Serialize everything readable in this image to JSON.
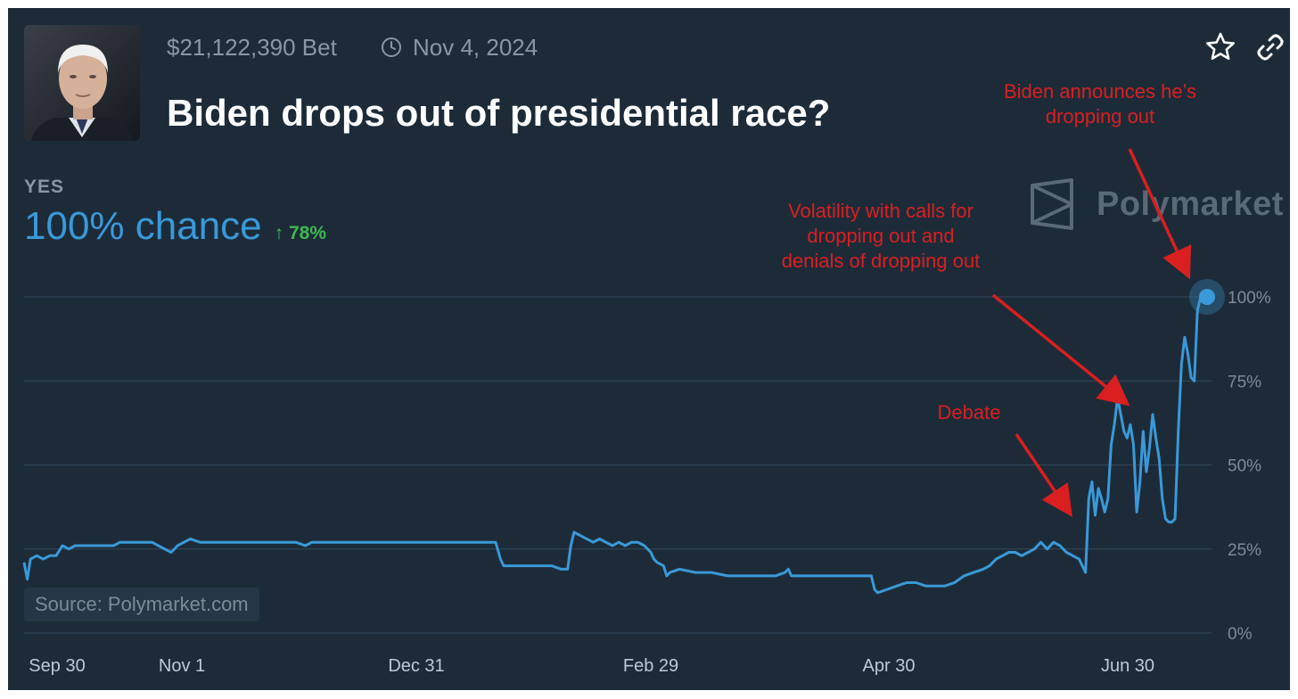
{
  "market": {
    "bet_volume": "$21,122,390 Bet",
    "end_date": "Nov 4, 2024",
    "title": "Biden drops out of presidential race?",
    "outcome_label": "YES",
    "chance": "100% chance",
    "change": "78%",
    "source": "Source: Polymarket.com",
    "watermark": "Polymarket"
  },
  "icons": {
    "star": "star-icon",
    "link": "link-icon",
    "clock": "clock-icon",
    "trend": "arrow-up-icon",
    "brand": "polymarket-logo"
  },
  "colors": {
    "background": "#1d2b39",
    "line": "#3a99d8",
    "positive": "#3fb950",
    "annotation": "#d91f1f"
  },
  "annotations": [
    {
      "id": "dropout",
      "lines": [
        "Biden announces he’s",
        "dropping out"
      ]
    },
    {
      "id": "volatility",
      "lines": [
        "Volatility with calls for",
        "dropping out and",
        "denials of dropping out"
      ]
    },
    {
      "id": "debate",
      "lines": [
        "Debate"
      ]
    }
  ],
  "chart_data": {
    "type": "line",
    "title": "",
    "xlabel": "",
    "ylabel": "",
    "ylim": [
      0,
      100
    ],
    "x_ticks": [
      "Sep 30",
      "Nov 1",
      "Dec 31",
      "Feb 29",
      "Apr 30",
      "Jun 30"
    ],
    "y_ticks": [
      "0%",
      "25%",
      "50%",
      "75%",
      "100%"
    ],
    "grid": true,
    "series": [
      {
        "values": [
          [
            0,
            21
          ],
          [
            2,
            16
          ],
          [
            4,
            22
          ],
          [
            8,
            23
          ],
          [
            12,
            22
          ],
          [
            16,
            23
          ],
          [
            20,
            23
          ],
          [
            24,
            26
          ],
          [
            28,
            25
          ],
          [
            32,
            26
          ],
          [
            40,
            26
          ],
          [
            48,
            26
          ],
          [
            56,
            26
          ],
          [
            60,
            27
          ],
          [
            70,
            27
          ],
          [
            80,
            27
          ],
          [
            88,
            25
          ],
          [
            92,
            24
          ],
          [
            96,
            26
          ],
          [
            100,
            27
          ],
          [
            104,
            28
          ],
          [
            110,
            27
          ],
          [
            120,
            27
          ],
          [
            130,
            27
          ],
          [
            140,
            27
          ],
          [
            150,
            27
          ],
          [
            160,
            27
          ],
          [
            170,
            27
          ],
          [
            176,
            26
          ],
          [
            180,
            27
          ],
          [
            190,
            27
          ],
          [
            200,
            27
          ],
          [
            210,
            27
          ],
          [
            220,
            27
          ],
          [
            230,
            27
          ],
          [
            240,
            27
          ],
          [
            250,
            27
          ],
          [
            260,
            27
          ],
          [
            270,
            27
          ],
          [
            280,
            27
          ],
          [
            290,
            27
          ],
          [
            295,
            27
          ],
          [
            298,
            22
          ],
          [
            300,
            20
          ],
          [
            310,
            20
          ],
          [
            320,
            20
          ],
          [
            330,
            20
          ],
          [
            336,
            19
          ],
          [
            340,
            19
          ],
          [
            342,
            26
          ],
          [
            344,
            30
          ],
          [
            348,
            29
          ],
          [
            352,
            28
          ],
          [
            356,
            27
          ],
          [
            360,
            28
          ],
          [
            364,
            27
          ],
          [
            368,
            26
          ],
          [
            372,
            27
          ],
          [
            376,
            26
          ],
          [
            380,
            27
          ],
          [
            384,
            27
          ],
          [
            388,
            26
          ],
          [
            392,
            24
          ],
          [
            394,
            22
          ],
          [
            396,
            21
          ],
          [
            400,
            20
          ],
          [
            402,
            17
          ],
          [
            404,
            18
          ],
          [
            410,
            19
          ],
          [
            420,
            18
          ],
          [
            430,
            18
          ],
          [
            440,
            17
          ],
          [
            450,
            17
          ],
          [
            460,
            17
          ],
          [
            470,
            17
          ],
          [
            476,
            18
          ],
          [
            478,
            19
          ],
          [
            480,
            17
          ],
          [
            490,
            17
          ],
          [
            500,
            17
          ],
          [
            510,
            17
          ],
          [
            520,
            17
          ],
          [
            530,
            17
          ],
          [
            532,
            13
          ],
          [
            534,
            12
          ],
          [
            540,
            13
          ],
          [
            546,
            14
          ],
          [
            552,
            15
          ],
          [
            558,
            15
          ],
          [
            564,
            14
          ],
          [
            570,
            14
          ],
          [
            576,
            14
          ],
          [
            582,
            15
          ],
          [
            588,
            17
          ],
          [
            594,
            18
          ],
          [
            600,
            19
          ],
          [
            604,
            20
          ],
          [
            608,
            22
          ],
          [
            612,
            23
          ],
          [
            616,
            24
          ],
          [
            620,
            24
          ],
          [
            624,
            23
          ],
          [
            628,
            24
          ],
          [
            632,
            25
          ],
          [
            636,
            27
          ],
          [
            640,
            25
          ],
          [
            644,
            27
          ],
          [
            648,
            26
          ],
          [
            652,
            24
          ],
          [
            656,
            23
          ],
          [
            660,
            22
          ],
          [
            662,
            20
          ],
          [
            664,
            18
          ],
          [
            666,
            40
          ],
          [
            668,
            45
          ],
          [
            670,
            35
          ],
          [
            672,
            43
          ],
          [
            674,
            40
          ],
          [
            676,
            36
          ],
          [
            678,
            40
          ],
          [
            680,
            56
          ],
          [
            682,
            62
          ],
          [
            684,
            70
          ],
          [
            686,
            65
          ],
          [
            688,
            60
          ],
          [
            690,
            58
          ],
          [
            692,
            62
          ],
          [
            694,
            56
          ],
          [
            696,
            36
          ],
          [
            698,
            45
          ],
          [
            700,
            60
          ],
          [
            702,
            48
          ],
          [
            704,
            55
          ],
          [
            706,
            65
          ],
          [
            708,
            58
          ],
          [
            710,
            52
          ],
          [
            712,
            40
          ],
          [
            714,
            34
          ],
          [
            716,
            33
          ],
          [
            718,
            33
          ],
          [
            720,
            34
          ],
          [
            722,
            60
          ],
          [
            724,
            80
          ],
          [
            726,
            88
          ],
          [
            728,
            83
          ],
          [
            730,
            76
          ],
          [
            732,
            75
          ],
          [
            734,
            96
          ],
          [
            736,
            100
          ],
          [
            740,
            100
          ]
        ]
      }
    ]
  }
}
